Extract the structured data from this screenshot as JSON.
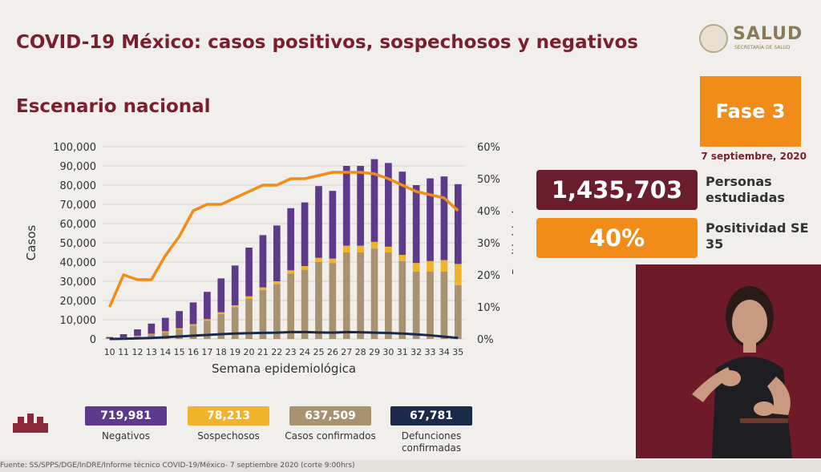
{
  "header": {
    "title": "COVID-19 México: casos positivos, sospechosos y negativos",
    "subtitle": "Escenario nacional"
  },
  "logo": {
    "name": "SALUD",
    "subtext": "SECRETARÍA DE SALUD"
  },
  "fase": {
    "label": "Fase 3",
    "date": "7 septiembre, 2020"
  },
  "stats": {
    "studied_value": "1,435,703",
    "studied_label": "Personas estudiadas",
    "positivity_value": "40%",
    "positivity_label": "Positividad SE 35"
  },
  "legend": {
    "negativos_value": "719,981",
    "negativos_label": "Negativos",
    "sospechosos_value": "78,213",
    "sospechosos_label": "Sospechosos",
    "confirmados_value": "637,509",
    "confirmados_label": "Casos confirmados",
    "defunciones_value": "67,781",
    "defunciones_label": "Defunciones confirmadas"
  },
  "footer": {
    "source": "Fuente: SS/SPPS/DGE/InDRE/Informe técnico COVID-19/México- 7 septiembre 2020 (corte 9:00hrs)"
  },
  "colors": {
    "negativos": "#5e3a8c",
    "sospechosos": "#f2b32c",
    "confirmados": "#a89270",
    "defunciones": "#1c2a4a",
    "positividad": "#f28c18",
    "brand": "#7a1f2d"
  },
  "chart_data": {
    "type": "bar",
    "title": "",
    "xlabel": "Semana epidemiológica",
    "ylabel": "Casos",
    "y2label": "Positividad",
    "ylim": [
      0,
      100000
    ],
    "y2lim": [
      0,
      60
    ],
    "yticks": [
      "0",
      "10,000",
      "20,000",
      "30,000",
      "40,000",
      "50,000",
      "60,000",
      "70,000",
      "80,000",
      "90,000",
      "100,000"
    ],
    "y2ticks": [
      "0%",
      "10%",
      "20%",
      "30%",
      "40%",
      "50%",
      "60%"
    ],
    "categories": [
      "10",
      "11",
      "12",
      "13",
      "14",
      "15",
      "16",
      "17",
      "18",
      "19",
      "20",
      "21",
      "22",
      "23",
      "24",
      "25",
      "26",
      "27",
      "28",
      "29",
      "30",
      "31",
      "32",
      "33",
      "34",
      "35"
    ],
    "series": [
      {
        "name": "Casos confirmados",
        "stack": "bar",
        "values": [
          200,
          600,
          1400,
          2300,
          3500,
          5000,
          7000,
          9500,
          13000,
          16500,
          21000,
          25500,
          28500,
          34000,
          36000,
          40000,
          39500,
          45000,
          45000,
          47000,
          45000,
          40500,
          35000,
          35000,
          35000,
          28000
        ]
      },
      {
        "name": "Sospechosos",
        "stack": "bar",
        "values": [
          100,
          200,
          300,
          400,
          500,
          600,
          700,
          800,
          900,
          1000,
          1200,
          1300,
          1500,
          1700,
          1900,
          2200,
          2300,
          3500,
          3500,
          3500,
          3000,
          3200,
          4500,
          5500,
          6000,
          11000
        ]
      },
      {
        "name": "Negativos",
        "stack": "bar",
        "values": [
          700,
          1700,
          3300,
          5300,
          7000,
          8900,
          11300,
          14200,
          17600,
          20700,
          25300,
          27200,
          29000,
          32300,
          33100,
          37300,
          35200,
          41500,
          41500,
          43000,
          43500,
          43300,
          40500,
          43000,
          43500,
          41500
        ]
      },
      {
        "name": "Defunciones confirmadas",
        "type": "line",
        "values": [
          0,
          100,
          300,
          500,
          900,
          1300,
          1700,
          2100,
          2500,
          2800,
          3000,
          3200,
          3300,
          3600,
          3600,
          3400,
          3300,
          3600,
          3500,
          3300,
          3100,
          2800,
          2400,
          1900,
          1200,
          500
        ]
      },
      {
        "name": "Positividad",
        "type": "line",
        "axis": "y2",
        "values": [
          10,
          20,
          18.5,
          18.5,
          26,
          32,
          40,
          42,
          42,
          44,
          46,
          48,
          48,
          50,
          50,
          51,
          52,
          52,
          52,
          51.5,
          50,
          48,
          46,
          45,
          44,
          40
        ]
      }
    ]
  }
}
